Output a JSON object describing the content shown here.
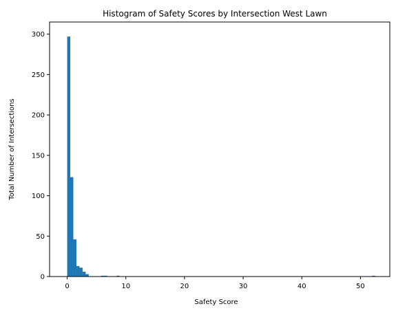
{
  "chart_data": {
    "type": "bar",
    "title": "Histogram of Safety Scores by Intersection West Lawn",
    "xlabel": "Safety Score",
    "ylabel": "Total Number of Intersections",
    "xlim": [
      -3,
      55
    ],
    "ylim": [
      0,
      315
    ],
    "x_ticks": [
      0,
      10,
      20,
      30,
      40,
      50
    ],
    "y_ticks": [
      0,
      50,
      100,
      150,
      200,
      250,
      300
    ],
    "bin_width": 0.525,
    "bar_color": "#1f77b4",
    "grid": false,
    "bins": [
      {
        "start": 0.0,
        "count": 297
      },
      {
        "start": 0.525,
        "count": 123
      },
      {
        "start": 1.05,
        "count": 46
      },
      {
        "start": 1.575,
        "count": 13
      },
      {
        "start": 2.1,
        "count": 11
      },
      {
        "start": 2.625,
        "count": 6
      },
      {
        "start": 3.15,
        "count": 3
      },
      {
        "start": 3.675,
        "count": 0
      },
      {
        "start": 5.775,
        "count": 1
      },
      {
        "start": 6.3,
        "count": 1
      },
      {
        "start": 8.4,
        "count": 1
      },
      {
        "start": 51.975,
        "count": 1
      }
    ]
  }
}
